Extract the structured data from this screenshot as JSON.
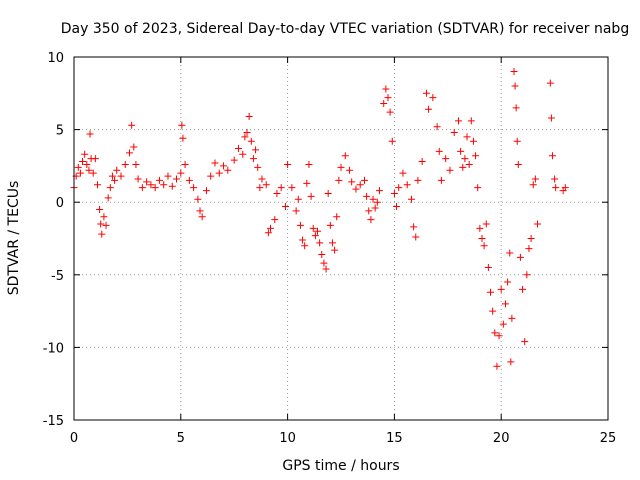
{
  "chart_data": {
    "type": "scatter",
    "title": "Day 350 of 2023, Sidereal Day-to-day VTEC variation (SDTVAR) for receiver nabg",
    "xlabel": "GPS time / hours",
    "ylabel": "SDTVAR / TECUs",
    "xlim": [
      0,
      25
    ],
    "ylim": [
      -15,
      10
    ],
    "xticks": [
      0,
      5,
      10,
      15,
      20,
      25
    ],
    "yticks": [
      -15,
      -10,
      -5,
      0,
      5,
      10
    ],
    "xtick_labels": [
      "0",
      "5",
      "10",
      "15",
      "20",
      "25"
    ],
    "ytick_labels": [
      "-15",
      "-10",
      "-5",
      "0",
      "5",
      "10"
    ],
    "grid": true,
    "marker": "+",
    "color": "#ff0000",
    "series": [
      {
        "name": "SDTVAR",
        "points": [
          [
            0.0,
            1.0
          ],
          [
            0.1,
            1.8
          ],
          [
            0.2,
            2.4
          ],
          [
            0.3,
            2.0
          ],
          [
            0.4,
            2.8
          ],
          [
            0.5,
            3.3
          ],
          [
            0.6,
            2.6
          ],
          [
            0.7,
            2.2
          ],
          [
            0.75,
            4.7
          ],
          [
            0.8,
            3.0
          ],
          [
            0.9,
            2.0
          ],
          [
            1.0,
            3.0
          ],
          [
            1.1,
            1.2
          ],
          [
            1.2,
            -0.5
          ],
          [
            1.25,
            -1.5
          ],
          [
            1.3,
            -2.2
          ],
          [
            1.4,
            -1.0
          ],
          [
            1.5,
            -1.6
          ],
          [
            1.6,
            0.3
          ],
          [
            1.7,
            1.0
          ],
          [
            1.8,
            1.8
          ],
          [
            1.9,
            1.5
          ],
          [
            2.0,
            2.2
          ],
          [
            2.2,
            1.8
          ],
          [
            2.4,
            2.6
          ],
          [
            2.6,
            3.4
          ],
          [
            2.7,
            5.3
          ],
          [
            2.8,
            3.8
          ],
          [
            2.9,
            2.6
          ],
          [
            3.0,
            1.6
          ],
          [
            3.2,
            1.0
          ],
          [
            3.4,
            1.4
          ],
          [
            3.6,
            1.2
          ],
          [
            3.8,
            1.0
          ],
          [
            4.0,
            1.5
          ],
          [
            4.2,
            1.2
          ],
          [
            4.4,
            1.8
          ],
          [
            4.6,
            1.1
          ],
          [
            4.8,
            1.6
          ],
          [
            5.0,
            2.0
          ],
          [
            5.05,
            5.3
          ],
          [
            5.1,
            4.4
          ],
          [
            5.2,
            2.6
          ],
          [
            5.4,
            1.5
          ],
          [
            5.6,
            1.0
          ],
          [
            5.8,
            0.2
          ],
          [
            5.9,
            -0.6
          ],
          [
            6.0,
            -1.0
          ],
          [
            6.2,
            0.8
          ],
          [
            6.4,
            1.8
          ],
          [
            6.6,
            2.7
          ],
          [
            6.8,
            2.0
          ],
          [
            7.0,
            2.5
          ],
          [
            7.2,
            2.2
          ],
          [
            7.5,
            2.9
          ],
          [
            7.7,
            3.7
          ],
          [
            7.9,
            3.3
          ],
          [
            8.0,
            4.5
          ],
          [
            8.1,
            4.8
          ],
          [
            8.2,
            5.9
          ],
          [
            8.3,
            4.2
          ],
          [
            8.4,
            3.0
          ],
          [
            8.5,
            3.6
          ],
          [
            8.6,
            2.4
          ],
          [
            8.7,
            1.0
          ],
          [
            8.8,
            1.6
          ],
          [
            9.0,
            1.2
          ],
          [
            9.1,
            -2.1
          ],
          [
            9.2,
            -1.8
          ],
          [
            9.4,
            -1.2
          ],
          [
            9.5,
            0.6
          ],
          [
            9.7,
            1.0
          ],
          [
            9.9,
            -0.3
          ],
          [
            10.0,
            2.6
          ],
          [
            10.2,
            1.0
          ],
          [
            10.4,
            -0.6
          ],
          [
            10.5,
            0.2
          ],
          [
            10.6,
            -1.6
          ],
          [
            10.7,
            -2.6
          ],
          [
            10.8,
            -3.0
          ],
          [
            10.9,
            1.3
          ],
          [
            11.0,
            2.6
          ],
          [
            11.1,
            0.4
          ],
          [
            11.2,
            -1.8
          ],
          [
            11.3,
            -2.3
          ],
          [
            11.4,
            -2.0
          ],
          [
            11.5,
            -2.8
          ],
          [
            11.6,
            -3.6
          ],
          [
            11.7,
            -4.2
          ],
          [
            11.8,
            -4.6
          ],
          [
            11.9,
            0.6
          ],
          [
            12.0,
            -1.6
          ],
          [
            12.1,
            -2.8
          ],
          [
            12.2,
            -3.3
          ],
          [
            12.3,
            -1.0
          ],
          [
            12.4,
            1.5
          ],
          [
            12.5,
            2.4
          ],
          [
            12.7,
            3.2
          ],
          [
            12.9,
            2.2
          ],
          [
            13.0,
            1.4
          ],
          [
            13.2,
            0.9
          ],
          [
            13.4,
            1.2
          ],
          [
            13.6,
            1.5
          ],
          [
            13.7,
            0.4
          ],
          [
            13.8,
            -0.6
          ],
          [
            13.9,
            -1.2
          ],
          [
            14.0,
            0.2
          ],
          [
            14.1,
            -0.4
          ],
          [
            14.2,
            0.0
          ],
          [
            14.3,
            0.8
          ],
          [
            14.5,
            6.8
          ],
          [
            14.6,
            7.8
          ],
          [
            14.7,
            7.2
          ],
          [
            14.8,
            6.2
          ],
          [
            14.9,
            4.2
          ],
          [
            15.0,
            0.6
          ],
          [
            15.1,
            -0.3
          ],
          [
            15.2,
            1.0
          ],
          [
            15.4,
            2.0
          ],
          [
            15.6,
            1.2
          ],
          [
            15.8,
            0.2
          ],
          [
            15.9,
            -1.7
          ],
          [
            16.0,
            -2.4
          ],
          [
            16.1,
            1.5
          ],
          [
            16.3,
            2.8
          ],
          [
            16.5,
            7.5
          ],
          [
            16.6,
            6.4
          ],
          [
            16.8,
            7.2
          ],
          [
            17.0,
            5.2
          ],
          [
            17.1,
            3.5
          ],
          [
            17.2,
            1.5
          ],
          [
            17.4,
            3.0
          ],
          [
            17.6,
            2.2
          ],
          [
            17.8,
            4.8
          ],
          [
            18.0,
            5.6
          ],
          [
            18.1,
            3.5
          ],
          [
            18.2,
            2.4
          ],
          [
            18.3,
            3.0
          ],
          [
            18.4,
            4.5
          ],
          [
            18.5,
            2.6
          ],
          [
            18.6,
            5.6
          ],
          [
            18.7,
            4.2
          ],
          [
            18.8,
            3.2
          ],
          [
            18.9,
            1.0
          ],
          [
            19.0,
            -1.8
          ],
          [
            19.1,
            -2.5
          ],
          [
            19.2,
            -3.0
          ],
          [
            19.3,
            -1.5
          ],
          [
            19.4,
            -4.5
          ],
          [
            19.5,
            -6.2
          ],
          [
            19.6,
            -7.5
          ],
          [
            19.7,
            -9.0
          ],
          [
            19.8,
            -11.3
          ],
          [
            19.9,
            -9.2
          ],
          [
            20.0,
            -6.0
          ],
          [
            20.1,
            -8.4
          ],
          [
            20.2,
            -7.0
          ],
          [
            20.3,
            -5.5
          ],
          [
            20.4,
            -3.5
          ],
          [
            20.45,
            -11.0
          ],
          [
            20.5,
            -8.0
          ],
          [
            20.6,
            9.0
          ],
          [
            20.65,
            8.0
          ],
          [
            20.7,
            6.5
          ],
          [
            20.75,
            4.2
          ],
          [
            20.8,
            2.6
          ],
          [
            20.9,
            -3.8
          ],
          [
            21.0,
            -6.0
          ],
          [
            21.1,
            -9.6
          ],
          [
            21.2,
            -5.0
          ],
          [
            21.3,
            -3.2
          ],
          [
            21.4,
            -2.5
          ],
          [
            21.5,
            1.2
          ],
          [
            21.6,
            1.6
          ],
          [
            21.7,
            -1.5
          ],
          [
            22.3,
            8.2
          ],
          [
            22.35,
            5.8
          ],
          [
            22.4,
            3.2
          ],
          [
            22.5,
            1.6
          ],
          [
            22.55,
            1.0
          ],
          [
            22.9,
            0.8
          ],
          [
            23.0,
            1.0
          ]
        ]
      }
    ]
  }
}
